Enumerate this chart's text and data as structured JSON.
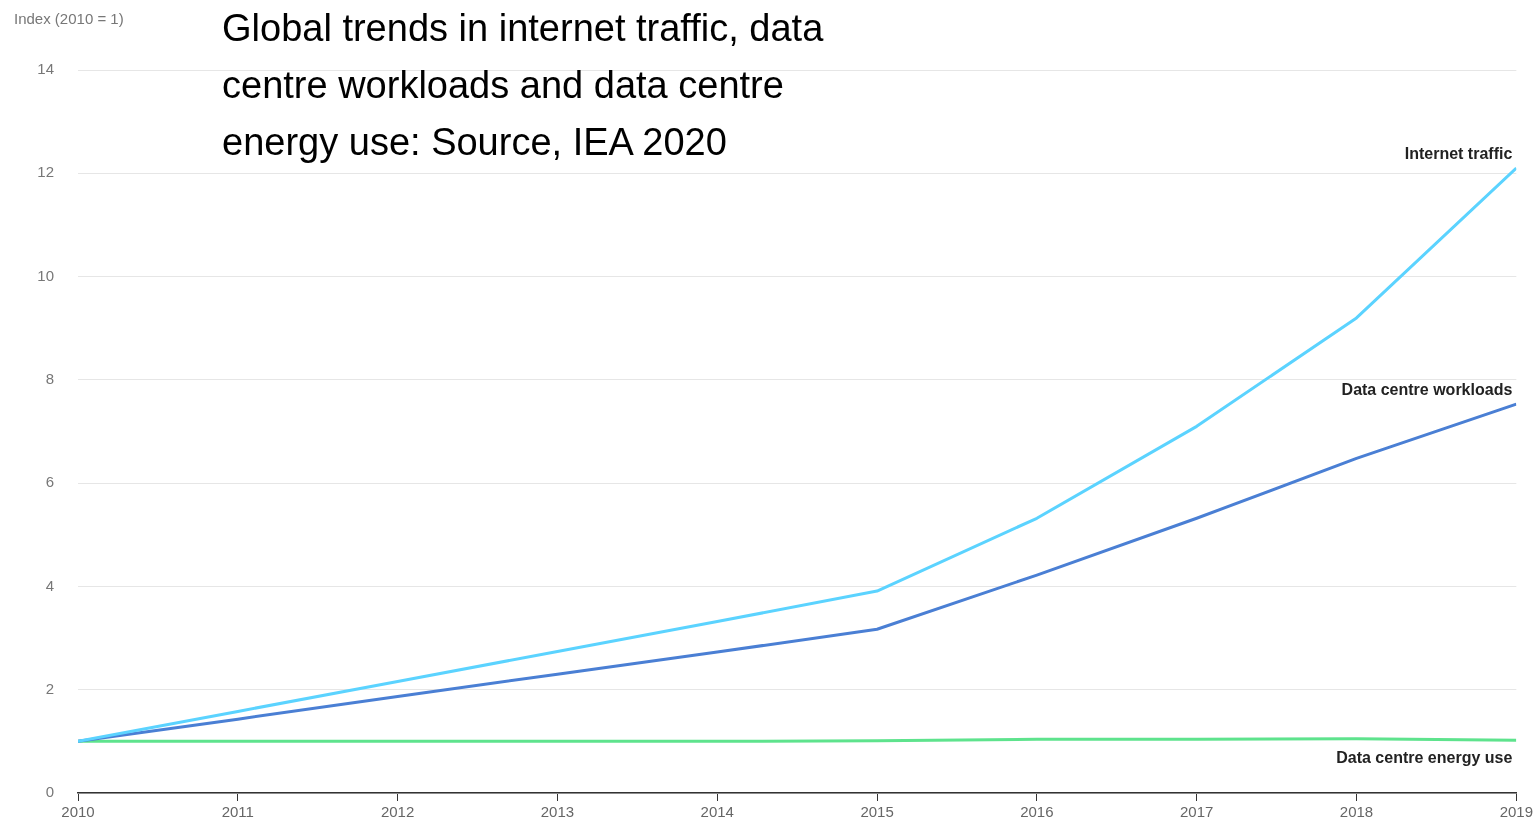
{
  "chart_data": {
    "type": "line",
    "title": "Global trends in internet traffic, data centre workloads and data centre energy use: Source, IEA 2020",
    "ylabel": "Index (2010 = 1)",
    "x": [
      2010,
      2011,
      2012,
      2013,
      2014,
      2015,
      2016,
      2017,
      2018,
      2019
    ],
    "series": [
      {
        "name": "Internet traffic",
        "color": "#5bd3ff",
        "values": [
          1,
          1.58,
          2.16,
          2.74,
          3.32,
          3.91,
          5.32,
          7.1,
          9.2,
          12.1
        ]
      },
      {
        "name": "Data centre workloads",
        "color": "#4a7fd4",
        "values": [
          1,
          1.43,
          1.87,
          2.3,
          2.73,
          3.17,
          4.22,
          5.32,
          6.48,
          7.53
        ]
      },
      {
        "name": "Data centre energy use",
        "color": "#5ee38d",
        "values": [
          1,
          1,
          1,
          1,
          1,
          1.01,
          1.04,
          1.04,
          1.05,
          1.02
        ]
      }
    ],
    "xlim": [
      2010,
      2019
    ],
    "xticks": [
      2010,
      2011,
      2012,
      2013,
      2014,
      2015,
      2016,
      2017,
      2018,
      2019
    ],
    "ylim": [
      0,
      14
    ],
    "yticks": [
      0,
      2,
      4,
      6,
      8,
      10,
      12,
      14
    ],
    "grid": "y",
    "legend": false,
    "marker": "none",
    "line_style": "solid"
  }
}
